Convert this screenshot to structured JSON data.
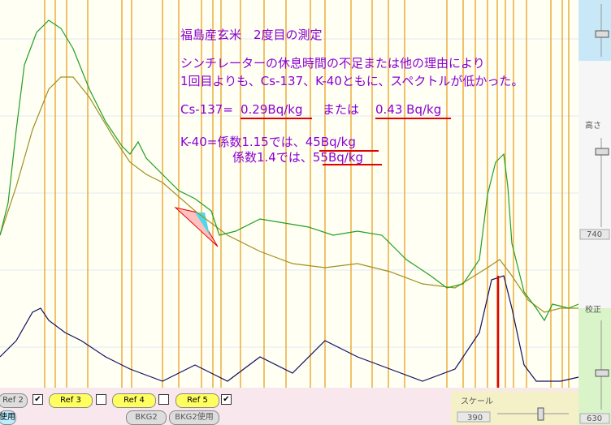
{
  "annotation": {
    "title": "福島産玄米　2度目の測定",
    "lines": [
      "シンチレーターの休息時間の不足または他の理由により",
      "1回目よりも、Cs-137、K-40ともに、スペクトルが低かった。"
    ],
    "cs": {
      "label": "Cs-137=",
      "value1": "0.29Bq/kg",
      "separator": "または",
      "value2": "0.43 Bq/kg"
    },
    "k40": {
      "line1": "K-40=係数1.15では、45Bq/kg",
      "line2": "係数1.4では、55Bq/kg"
    }
  },
  "side_panel": {
    "height_label": "高さ",
    "height_value": "740",
    "calib_label": "校正",
    "calib_value": "630"
  },
  "toolbar": {
    "refs": [
      "Ref 2",
      "Ref 3",
      "Ref 4",
      "Ref 5"
    ],
    "use": "使用",
    "bkg2": "BKG2",
    "bkg2_use": "BKG2使用",
    "scale_label": "スケール",
    "scale_value": "390"
  }
}
